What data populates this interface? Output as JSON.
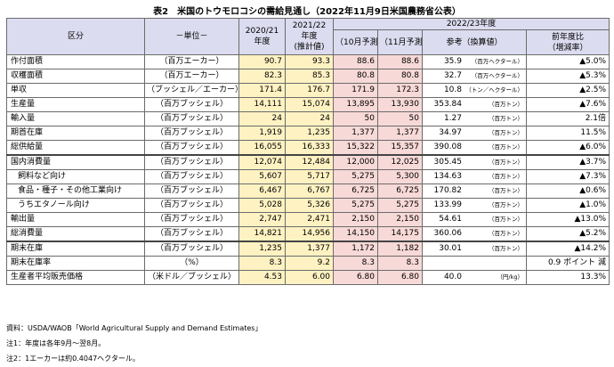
{
  "title": "表2　米国のトウモロコシの需給見通し（2022年11月9日米国農務省公表）",
  "headers": {
    "category": "区分",
    "unit": "－単位－",
    "col_2020": "2020/21年度",
    "col_2021": "2021/22年度（推計値）",
    "group_2022": "2022/23年度",
    "oct": "（10月予測）",
    "nov": "（11月予測）",
    "ref": "参考（換算値）",
    "yoy": "前年度比（増減率）"
  },
  "rows": [
    {
      "item": "作付面積",
      "unit": "（百万エーカー）",
      "y2020": "90.7",
      "y2021": "93.3",
      "oct": "88.6",
      "nov": "88.6",
      "ref_value": "35.9",
      "ref_unit": "（百万ヘクタール）",
      "yoy": "▲5.0%"
    },
    {
      "item": "収穫面積",
      "unit": "（百万エーカー）",
      "y2020": "82.3",
      "y2021": "85.3",
      "oct": "80.8",
      "nov": "80.8",
      "ref_value": "32.7",
      "ref_unit": "（百万ヘクタール）",
      "yoy": "▲5.3%"
    },
    {
      "item": "単収",
      "unit": "（ブッシェル／エーカー）",
      "y2020": "171.4",
      "y2021": "176.7",
      "oct": "171.9",
      "nov": "172.3",
      "ref_value": "10.8",
      "ref_unit": "（トン／ヘクタール）",
      "yoy": "▲2.5%"
    },
    {
      "item": "生産量",
      "unit": "（百万ブッシェル）",
      "y2020": "14,111",
      "y2021": "15,074",
      "oct": "13,895",
      "nov": "13,930",
      "ref_value": "353.84",
      "ref_unit": "（百万トン）",
      "yoy": "▲7.6%"
    },
    {
      "item": "輸入量",
      "unit": "（百万ブッシェル）",
      "y2020": "24",
      "y2021": "24",
      "oct": "50",
      "nov": "50",
      "ref_value": "1.27",
      "ref_unit": "（百万トン）",
      "yoy": "2.1倍"
    },
    {
      "item": "期首在庫",
      "unit": "（百万ブッシェル）",
      "y2020": "1,919",
      "y2021": "1,235",
      "oct": "1,377",
      "nov": "1,377",
      "ref_value": "34.97",
      "ref_unit": "（百万トン）",
      "yoy": "11.5%"
    },
    {
      "item": "総供給量",
      "unit": "（百万ブッシェル）",
      "y2020": "16,055",
      "y2021": "16,333",
      "oct": "15,322",
      "nov": "15,357",
      "ref_value": "390.08",
      "ref_unit": "（百万トン）",
      "yoy": "▲6.0%"
    },
    {
      "item": "国内消費量",
      "unit": "（百万ブッシェル）",
      "y2020": "12,074",
      "y2021": "12,484",
      "oct": "12,000",
      "nov": "12,025",
      "ref_value": "305.45",
      "ref_unit": "（百万トン）",
      "yoy": "▲3.7%"
    },
    {
      "item": "飼料など向け",
      "unit": "（百万ブッシェル）",
      "y2020": "5,607",
      "y2021": "5,717",
      "oct": "5,275",
      "nov": "5,300",
      "ref_value": "134.63",
      "ref_unit": "（百万トン）",
      "yoy": "▲7.3%"
    },
    {
      "item": "食品・種子・その他工業向け",
      "unit": "（百万ブッシェル）",
      "y2020": "6,467",
      "y2021": "6,767",
      "oct": "6,725",
      "nov": "6,725",
      "ref_value": "170.82",
      "ref_unit": "（百万トン）",
      "yoy": "▲0.6%"
    },
    {
      "item": "うちエタノール向け",
      "unit": "（百万ブッシェル）",
      "y2020": "5,028",
      "y2021": "5,326",
      "oct": "5,275",
      "nov": "5,275",
      "ref_value": "133.99",
      "ref_unit": "（百万トン）",
      "yoy": "▲1.0%"
    },
    {
      "item": "輸出量",
      "unit": "（百万ブッシェル）",
      "y2020": "2,747",
      "y2021": "2,471",
      "oct": "2,150",
      "nov": "2,150",
      "ref_value": "54.61",
      "ref_unit": "（百万トン）",
      "yoy": "▲13.0%"
    },
    {
      "item": "総消費量",
      "unit": "（百万ブッシェル）",
      "y2020": "14,821",
      "y2021": "14,956",
      "oct": "14,150",
      "nov": "14,175",
      "ref_value": "360.06",
      "ref_unit": "（百万トン）",
      "yoy": "▲5.2%"
    },
    {
      "item": "期末在庫",
      "unit": "（百万ブッシェル）",
      "y2020": "1,235",
      "y2021": "1,377",
      "oct": "1,172",
      "nov": "1,182",
      "ref_value": "30.01",
      "ref_unit": "（百万トン）",
      "yoy": "▲14.2%"
    },
    {
      "item": "期末在庫率",
      "unit": "（%）",
      "y2020": "8.3",
      "y2021": "9.2",
      "oct": "8.3",
      "nov": "8.3",
      "ref_value": "",
      "ref_unit": "",
      "yoy": "0.9 ポイント 減"
    },
    {
      "item": "生産者平均販売価格",
      "unit": "（米ドル／ブッシェル）",
      "y2020": "4.53",
      "y2021": "6.00",
      "oct": "6.80",
      "nov": "6.80",
      "ref_value": "40.0",
      "ref_unit": "（円/kg）",
      "yoy": "13.3%"
    }
  ],
  "notes": [
    "資料：USDA/WAOB「World Agricultural Supply and Demand Estimates」",
    "注1：年度は各年9月～翌8月。",
    "注2：1エーカーは約0.4047ヘクタール。"
  ]
}
